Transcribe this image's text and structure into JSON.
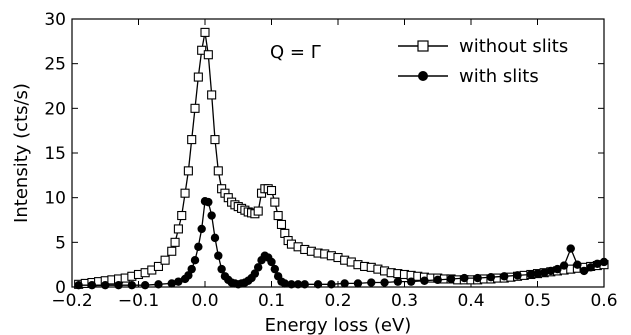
{
  "chart_data": {
    "type": "scatter",
    "xlabel": "Energy loss (eV)",
    "ylabel": "Intensity (cts/s)",
    "xlim": [
      -0.2,
      0.6
    ],
    "ylim": [
      0,
      30
    ],
    "xticks": [
      "−0.2",
      "−0.1",
      "0.0",
      "0.1",
      "0.2",
      "0.3",
      "0.4",
      "0.5",
      "0.6"
    ],
    "xtick_values": [
      -0.2,
      -0.1,
      0.0,
      0.1,
      0.2,
      0.3,
      0.4,
      0.5,
      0.6
    ],
    "yticks": [
      "0",
      "5",
      "10",
      "15",
      "20",
      "25",
      "30"
    ],
    "ytick_values": [
      0,
      5,
      10,
      15,
      20,
      25,
      30
    ],
    "grid": false,
    "legend_position": "top-right",
    "annotation": "Q = Γ",
    "series": [
      {
        "name": "without slits",
        "marker": "open-square",
        "color": "#000000",
        "x": [
          -0.19,
          -0.18,
          -0.17,
          -0.16,
          -0.15,
          -0.14,
          -0.13,
          -0.12,
          -0.11,
          -0.1,
          -0.09,
          -0.08,
          -0.07,
          -0.06,
          -0.05,
          -0.045,
          -0.04,
          -0.035,
          -0.03,
          -0.025,
          -0.02,
          -0.015,
          -0.01,
          -0.005,
          0.0,
          0.005,
          0.01,
          0.015,
          0.02,
          0.025,
          0.03,
          0.035,
          0.04,
          0.045,
          0.05,
          0.055,
          0.06,
          0.065,
          0.07,
          0.075,
          0.08,
          0.085,
          0.09,
          0.095,
          0.1,
          0.105,
          0.11,
          0.115,
          0.12,
          0.125,
          0.13,
          0.14,
          0.15,
          0.16,
          0.17,
          0.18,
          0.19,
          0.2,
          0.21,
          0.22,
          0.23,
          0.24,
          0.25,
          0.26,
          0.27,
          0.28,
          0.29,
          0.3,
          0.31,
          0.32,
          0.33,
          0.34,
          0.35,
          0.36,
          0.37,
          0.38,
          0.39,
          0.4,
          0.41,
          0.42,
          0.43,
          0.44,
          0.45,
          0.46,
          0.47,
          0.48,
          0.49,
          0.5,
          0.51,
          0.52,
          0.53,
          0.54,
          0.55,
          0.56,
          0.57,
          0.58,
          0.59,
          0.6
        ],
        "y": [
          0.3,
          0.4,
          0.5,
          0.6,
          0.7,
          0.8,
          0.9,
          1.0,
          1.2,
          1.4,
          1.6,
          1.9,
          2.3,
          3.0,
          4.0,
          5.0,
          6.5,
          8.0,
          10.5,
          13.0,
          16.5,
          20.0,
          23.5,
          26.5,
          28.5,
          26.0,
          21.5,
          16.5,
          13.0,
          11.0,
          10.5,
          10.0,
          9.5,
          9.2,
          9.0,
          8.8,
          8.6,
          8.4,
          8.3,
          8.2,
          8.5,
          10.5,
          11.0,
          11.0,
          10.8,
          9.5,
          8.0,
          7.0,
          6.0,
          5.2,
          4.8,
          4.5,
          4.2,
          4.0,
          3.8,
          3.7,
          3.5,
          3.3,
          3.0,
          2.8,
          2.5,
          2.3,
          2.2,
          2.0,
          1.8,
          1.6,
          1.5,
          1.4,
          1.3,
          1.2,
          1.1,
          1.0,
          1.0,
          0.9,
          0.9,
          0.8,
          0.8,
          0.8,
          0.8,
          0.9,
          0.9,
          1.0,
          1.0,
          1.1,
          1.2,
          1.3,
          1.4,
          1.5,
          1.6,
          1.7,
          1.8,
          1.9,
          2.0,
          2.1,
          2.2,
          2.3,
          2.4,
          2.5
        ]
      },
      {
        "name": "with slits",
        "marker": "filled-circle",
        "color": "#000000",
        "x": [
          -0.19,
          -0.17,
          -0.15,
          -0.13,
          -0.11,
          -0.09,
          -0.07,
          -0.05,
          -0.04,
          -0.03,
          -0.025,
          -0.02,
          -0.015,
          -0.01,
          -0.005,
          0.0,
          0.005,
          0.01,
          0.015,
          0.02,
          0.025,
          0.03,
          0.035,
          0.04,
          0.045,
          0.05,
          0.055,
          0.06,
          0.065,
          0.07,
          0.075,
          0.08,
          0.085,
          0.09,
          0.095,
          0.1,
          0.105,
          0.11,
          0.115,
          0.12,
          0.13,
          0.14,
          0.15,
          0.17,
          0.19,
          0.21,
          0.23,
          0.25,
          0.27,
          0.29,
          0.31,
          0.33,
          0.35,
          0.37,
          0.39,
          0.41,
          0.43,
          0.45,
          0.47,
          0.49,
          0.5,
          0.51,
          0.52,
          0.53,
          0.54,
          0.55,
          0.56,
          0.57,
          0.58,
          0.59,
          0.6
        ],
        "y": [
          0.2,
          0.2,
          0.2,
          0.2,
          0.2,
          0.2,
          0.3,
          0.4,
          0.6,
          0.9,
          1.3,
          2.0,
          3.0,
          4.5,
          6.5,
          9.6,
          9.5,
          8.0,
          5.5,
          3.5,
          2.0,
          1.2,
          0.8,
          0.5,
          0.4,
          0.3,
          0.4,
          0.5,
          0.7,
          1.0,
          1.5,
          2.2,
          3.0,
          3.5,
          3.3,
          2.8,
          2.0,
          1.2,
          0.6,
          0.4,
          0.3,
          0.3,
          0.3,
          0.3,
          0.3,
          0.4,
          0.4,
          0.5,
          0.5,
          0.6,
          0.6,
          0.7,
          0.8,
          0.9,
          1.0,
          1.0,
          1.1,
          1.2,
          1.3,
          1.4,
          1.5,
          1.6,
          1.8,
          2.0,
          2.4,
          4.3,
          2.5,
          1.8,
          2.2,
          2.6,
          2.8
        ]
      }
    ]
  }
}
